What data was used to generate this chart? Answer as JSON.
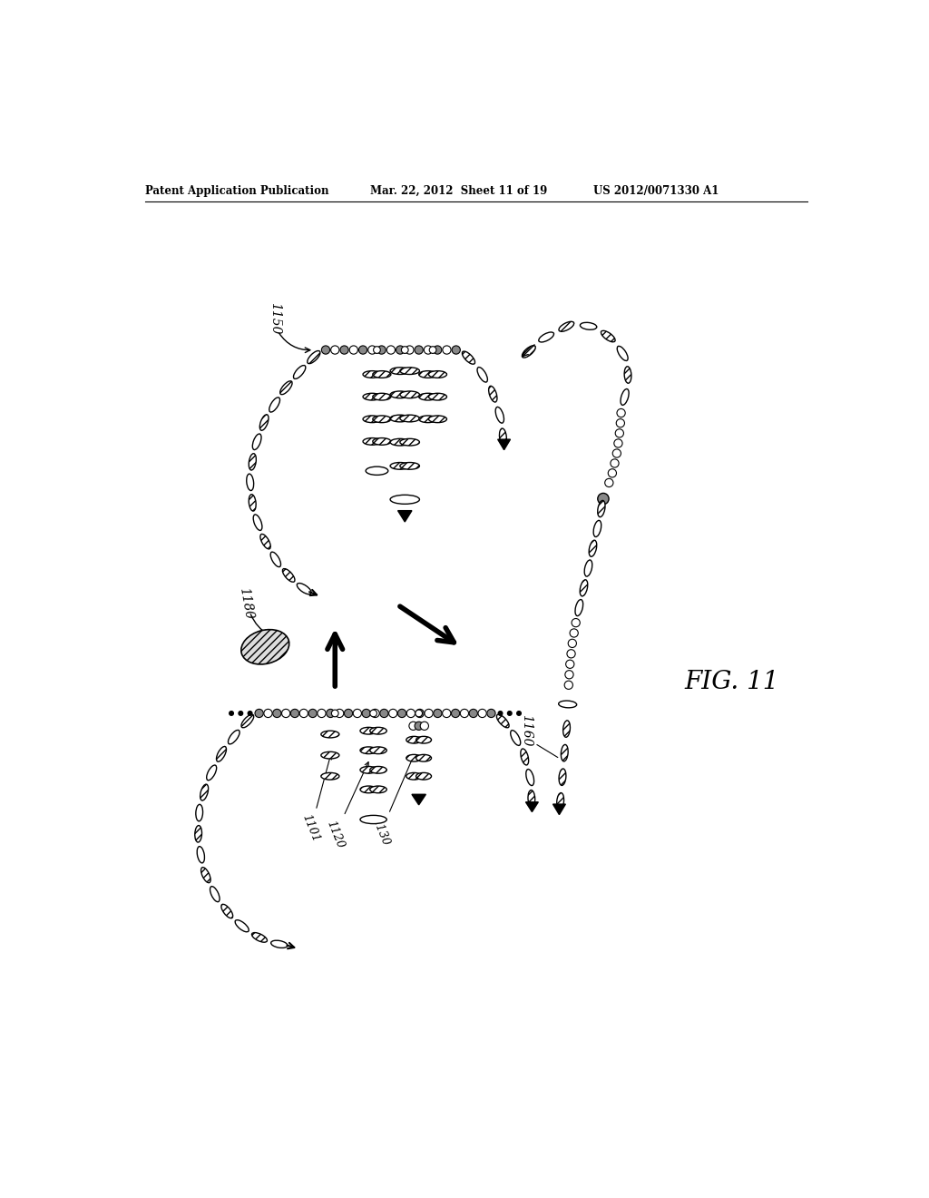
{
  "header_left": "Patent Application Publication",
  "header_mid": "Mar. 22, 2012  Sheet 11 of 19",
  "header_right": "US 2012/0071330 A1",
  "fig_label": "FIG. 11",
  "label_1150": "1150",
  "label_1180": "1180",
  "label_1160": "1160",
  "label_1101": "1101",
  "label_1120": "1120",
  "label_1130": "1130",
  "bg_color": "#ffffff",
  "fg_color": "#000000"
}
